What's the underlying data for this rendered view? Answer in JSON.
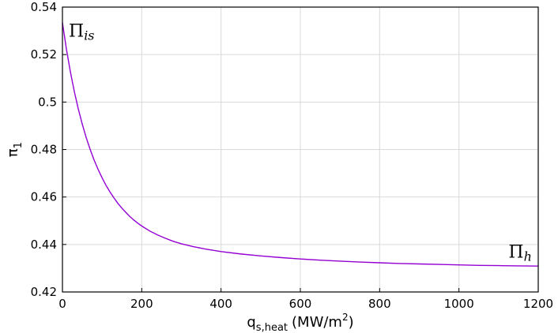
{
  "chart_data": {
    "type": "line",
    "title": "",
    "xlabel": {
      "main": "q",
      "sub": "s,heat",
      "unit_pre": "(MW/m",
      "unit_sup": "2",
      "unit_post": ")"
    },
    "ylabel": {
      "main": "π",
      "sub": "1"
    },
    "xlim": [
      0,
      1200
    ],
    "ylim": [
      0.42,
      0.54
    ],
    "xticks": [
      0,
      200,
      400,
      600,
      800,
      1000,
      1200
    ],
    "xtick_labels": [
      "0",
      "200",
      "400",
      "600",
      "800",
      "1000",
      "1200"
    ],
    "yticks": [
      0.42,
      0.44,
      0.46,
      0.48,
      0.5,
      0.52,
      0.54
    ],
    "ytick_labels": [
      "0.42",
      "0.44",
      "0.46",
      "0.48",
      "0.5",
      "0.52",
      "0.54"
    ],
    "grid": true,
    "series": [
      {
        "color": "#9400D3",
        "x": [
          0,
          10,
          20,
          30,
          40,
          50,
          60,
          70,
          80,
          90,
          100,
          110,
          120,
          130,
          140,
          150,
          160,
          170,
          180,
          190,
          200,
          220,
          240,
          260,
          280,
          300,
          330,
          360,
          400,
          450,
          500,
          550,
          600,
          650,
          700,
          750,
          800,
          850,
          900,
          950,
          1000,
          1050,
          1100,
          1150,
          1200
        ],
        "y": [
          0.5335,
          0.5223,
          0.5128,
          0.5044,
          0.4971,
          0.4907,
          0.485,
          0.48,
          0.4755,
          0.4716,
          0.4681,
          0.4649,
          0.4621,
          0.4596,
          0.4573,
          0.4553,
          0.4535,
          0.4518,
          0.4503,
          0.449,
          0.4478,
          0.4457,
          0.444,
          0.4426,
          0.4413,
          0.4403,
          0.4391,
          0.4381,
          0.437,
          0.436,
          0.4352,
          0.4345,
          0.4339,
          0.4334,
          0.433,
          0.4326,
          0.4323,
          0.432,
          0.4318,
          0.4316,
          0.4314,
          0.4312,
          0.4311,
          0.431,
          0.4309
        ]
      }
    ],
    "annotations": [
      {
        "main": "Π",
        "sub": "is",
        "x": 8,
        "y": 0.5335
      },
      {
        "main": "Π",
        "sub": "h",
        "x": 1125,
        "y": 0.4345
      }
    ]
  }
}
